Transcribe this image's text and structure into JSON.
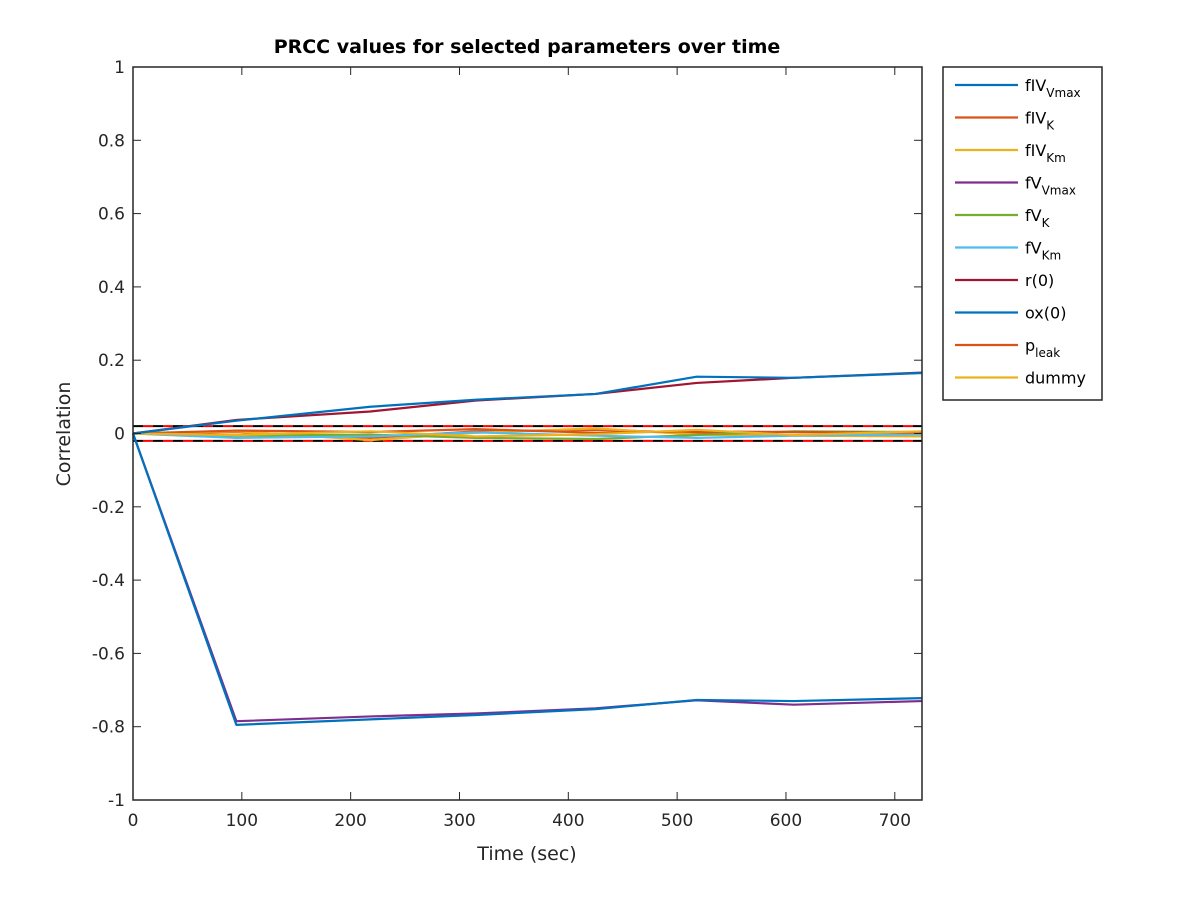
{
  "chart_data": {
    "type": "line",
    "title": "PRCC values for selected parameters over time",
    "xlabel": "Time (sec)",
    "ylabel": "Correlation",
    "xlim": [
      0,
      725
    ],
    "ylim": [
      -1,
      1
    ],
    "xticks": [
      0,
      100,
      200,
      300,
      400,
      500,
      600,
      700
    ],
    "yticks": [
      -1,
      -0.8,
      -0.6,
      -0.4,
      -0.2,
      0,
      0.2,
      0.4,
      0.6,
      0.8,
      1
    ],
    "ytick_labels": [
      "-1",
      "-0.8",
      "-0.6",
      "-0.4",
      "-0.2",
      "0",
      "0.2",
      "0.4",
      "0.6",
      "0.8",
      "1"
    ],
    "x": [
      0,
      95,
      218,
      315,
      425,
      518,
      607,
      725
    ],
    "legend_position": "outside-top-right",
    "grid": false,
    "series": [
      {
        "name": "fIV",
        "sub": "Vmax",
        "color": "#0072BD",
        "values": [
          0,
          -0.795,
          -0.78,
          -0.768,
          -0.752,
          -0.727,
          -0.73,
          -0.722
        ]
      },
      {
        "name": "fIV",
        "sub": "K",
        "color": "#D95319",
        "values": [
          0,
          0.004,
          -0.012,
          0.006,
          0.01,
          0.002,
          -0.004,
          0.003
        ]
      },
      {
        "name": "fIV",
        "sub": "Km",
        "color": "#EDB120",
        "values": [
          0,
          0.006,
          -0.018,
          0.002,
          0.014,
          -0.003,
          -0.006,
          -0.008
        ]
      },
      {
        "name": "fV",
        "sub": "Vmax",
        "color": "#7E2F8E",
        "values": [
          0,
          -0.785,
          -0.772,
          -0.764,
          -0.75,
          -0.728,
          -0.74,
          -0.73
        ]
      },
      {
        "name": "fV",
        "sub": "K",
        "color": "#77AC30",
        "values": [
          0,
          -0.006,
          -0.003,
          -0.012,
          -0.015,
          -0.004,
          0.006,
          0.004
        ]
      },
      {
        "name": "fV",
        "sub": "Km",
        "color": "#4DBEEE",
        "values": [
          0,
          -0.012,
          -0.008,
          0.003,
          -0.006,
          -0.012,
          -0.006,
          -0.002
        ]
      },
      {
        "name": "r(0)",
        "sub": "",
        "color": "#A2142F",
        "values": [
          0,
          0.037,
          0.06,
          0.09,
          0.108,
          0.138,
          0.152,
          0.166
        ]
      },
      {
        "name": "ox(0)",
        "sub": "",
        "color": "#0072BD",
        "values": [
          0,
          0.035,
          0.073,
          0.092,
          0.108,
          0.155,
          0.152,
          0.165
        ]
      },
      {
        "name": "p",
        "sub": "leak",
        "color": "#D95319",
        "values": [
          0,
          0.008,
          0.004,
          0.012,
          0.002,
          0.006,
          0.004,
          0.002
        ]
      },
      {
        "name": "dummy",
        "sub": "",
        "color": "#EDB120",
        "values": [
          0,
          -0.004,
          0.006,
          -0.008,
          -0.002,
          0.01,
          -0.004,
          0.006
        ]
      }
    ],
    "reference_lines": {
      "values": [
        0.02,
        -0.02
      ],
      "dashed_colors": [
        "#000000",
        "#FF0000"
      ]
    }
  }
}
